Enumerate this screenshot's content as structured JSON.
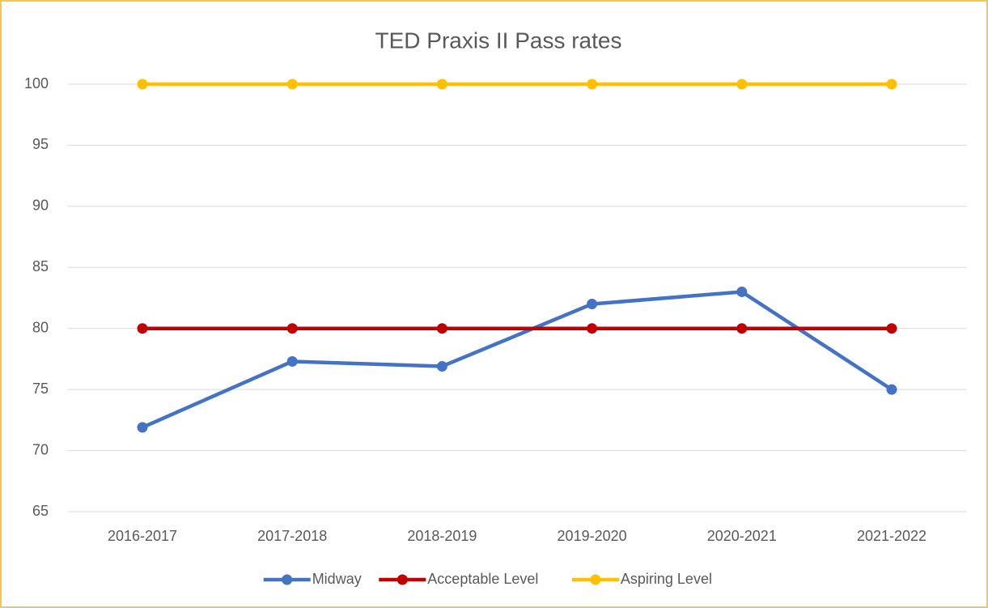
{
  "chart_data": {
    "type": "line",
    "title": "TED Praxis II Pass rates",
    "categories": [
      "2016-2017",
      "2017-2018",
      "2018-2019",
      "2019-2020",
      "2020-2021",
      "2021-2022"
    ],
    "series": [
      {
        "name": "Midway",
        "color": "#4472c4",
        "values": [
          71.9,
          77.3,
          76.9,
          82,
          83,
          75
        ]
      },
      {
        "name": "Acceptable Level",
        "color": "#c00000",
        "values": [
          80,
          80,
          80,
          80,
          80,
          80
        ]
      },
      {
        "name": "Aspiring Level",
        "color": "#ffc000",
        "values": [
          100,
          100,
          100,
          100,
          100,
          100
        ]
      }
    ],
    "ylim": [
      65,
      100
    ],
    "yticks": [
      65,
      70,
      75,
      80,
      85,
      90,
      95,
      100
    ],
    "grid": true,
    "legend": "bottom"
  }
}
